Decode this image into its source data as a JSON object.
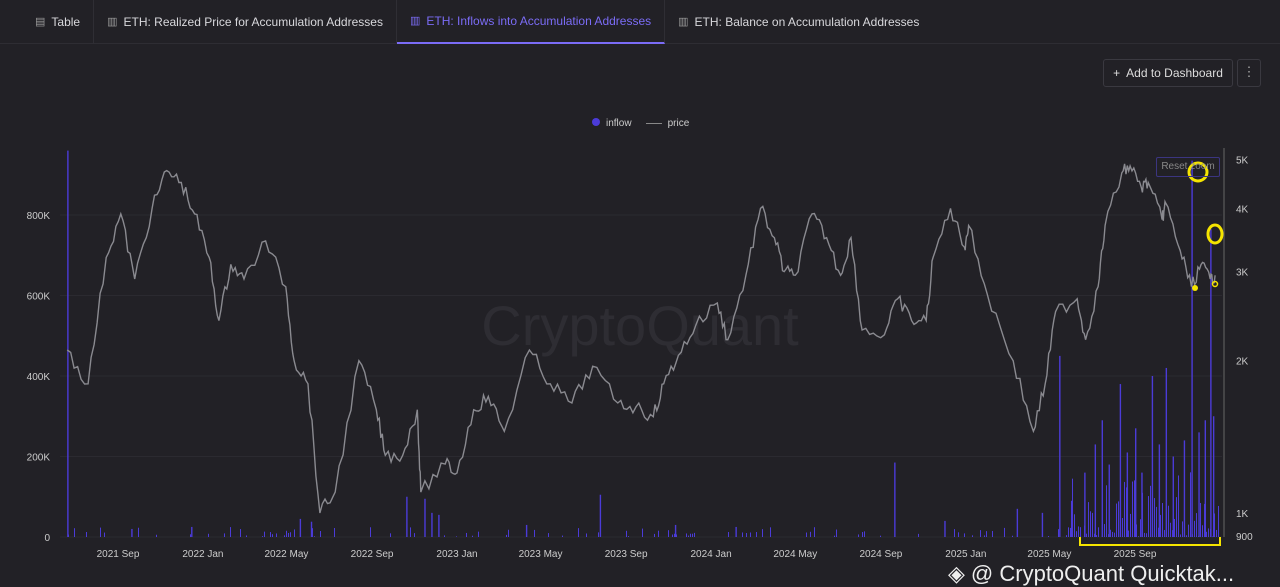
{
  "tabs": [
    {
      "label": "Table",
      "icon": "table-icon"
    },
    {
      "label": "ETH: Realized Price for Accumulation Addresses",
      "icon": "bar-chart-icon"
    },
    {
      "label": "ETH: Inflows into Accumulation Addresses",
      "icon": "bar-chart-icon",
      "active": true
    },
    {
      "label": "ETH: Balance on Accumulation Addresses",
      "icon": "bar-chart-icon"
    }
  ],
  "toolbar": {
    "add_label": "Add to Dashboard",
    "more": "⋮"
  },
  "reset_zoom": "Reset zoom",
  "watermark_center": "CryptoQuant",
  "watermark": "@ CryptoQuant Quicktak...",
  "colors": {
    "inflow": "#4b3bd8",
    "price": "#8a8a90",
    "highlight": "#f5e400",
    "accent": "#7b6cf6"
  },
  "chart_data": {
    "type": "bar+line",
    "legend": [
      {
        "name": "inflow"
      },
      {
        "name": "price"
      }
    ],
    "legend_position": "top-center",
    "x_ticks": [
      "2021 Sep",
      "2022 Jan",
      "2022 May",
      "2022 Sep",
      "2023 Jan",
      "2023 May",
      "2023 Sep",
      "2024 Jan",
      "2024 May",
      "2024 Sep",
      "2025 Jan",
      "2025 May",
      "2025 Sep"
    ],
    "x_tick_dates": [
      "2021-09-01",
      "2022-01-01",
      "2022-05-01",
      "2022-09-01",
      "2023-01-01",
      "2023-05-01",
      "2023-09-01",
      "2024-01-01",
      "2024-05-01",
      "2024-09-01",
      "2025-01-01",
      "2025-05-01",
      "2025-09-01"
    ],
    "left_axis": {
      "ticks": [
        "0",
        "200K",
        "400K",
        "600K",
        "800K"
      ],
      "values": [
        0,
        200000,
        400000,
        600000,
        800000
      ],
      "range": [
        0,
        960000
      ]
    },
    "right_axis": {
      "scale": "log",
      "ticks": [
        "900",
        "1K",
        "2K",
        "3K",
        "4K",
        "5K"
      ],
      "values": [
        900,
        1000,
        2000,
        3000,
        4000,
        5000
      ]
    },
    "price": [
      [
        "2021-06-20",
        2100
      ],
      [
        "2021-07-20",
        1800
      ],
      [
        "2021-08-15",
        3200
      ],
      [
        "2021-09-05",
        3900
      ],
      [
        "2021-09-25",
        2900
      ],
      [
        "2021-10-20",
        4000
      ],
      [
        "2021-11-10",
        4750
      ],
      [
        "2021-12-01",
        4500
      ],
      [
        "2021-12-20",
        3900
      ],
      [
        "2022-01-10",
        3200
      ],
      [
        "2022-01-24",
        2400
      ],
      [
        "2022-02-10",
        3100
      ],
      [
        "2022-03-01",
        2900
      ],
      [
        "2022-04-01",
        3450
      ],
      [
        "2022-04-30",
        2800
      ],
      [
        "2022-05-12",
        2000
      ],
      [
        "2022-06-01",
        1800
      ],
      [
        "2022-06-18",
        1000
      ],
      [
        "2022-07-10",
        1100
      ],
      [
        "2022-08-13",
        2000
      ],
      [
        "2022-09-07",
        1600
      ],
      [
        "2022-09-20",
        1300
      ],
      [
        "2022-10-15",
        1300
      ],
      [
        "2022-11-05",
        1600
      ],
      [
        "2022-11-10",
        1100
      ],
      [
        "2022-12-15",
        1250
      ],
      [
        "2023-01-01",
        1200
      ],
      [
        "2023-01-25",
        1600
      ],
      [
        "2023-02-15",
        1700
      ],
      [
        "2023-03-10",
        1450
      ],
      [
        "2023-04-15",
        2100
      ],
      [
        "2023-05-15",
        1800
      ],
      [
        "2023-06-15",
        1650
      ],
      [
        "2023-07-15",
        1950
      ],
      [
        "2023-08-20",
        1650
      ],
      [
        "2023-09-15",
        1620
      ],
      [
        "2023-10-10",
        1550
      ],
      [
        "2023-10-25",
        1800
      ],
      [
        "2023-11-15",
        2050
      ],
      [
        "2023-12-10",
        2350
      ],
      [
        "2024-01-10",
        2600
      ],
      [
        "2024-01-25",
        2200
      ],
      [
        "2024-02-20",
        2950
      ],
      [
        "2024-03-12",
        4000
      ],
      [
        "2024-04-01",
        3500
      ],
      [
        "2024-04-15",
        3000
      ],
      [
        "2024-05-01",
        2950
      ],
      [
        "2024-05-25",
        3900
      ],
      [
        "2024-06-15",
        3500
      ],
      [
        "2024-07-05",
        2950
      ],
      [
        "2024-07-20",
        3500
      ],
      [
        "2024-08-05",
        2300
      ],
      [
        "2024-09-06",
        2250
      ],
      [
        "2024-09-25",
        2650
      ],
      [
        "2024-10-15",
        2400
      ],
      [
        "2024-11-05",
        2400
      ],
      [
        "2024-11-15",
        3200
      ],
      [
        "2024-12-10",
        4000
      ],
      [
        "2024-12-30",
        3350
      ],
      [
        "2025-01-05",
        3700
      ],
      [
        "2025-02-01",
        2700
      ],
      [
        "2025-03-10",
        2000
      ],
      [
        "2025-04-08",
        1450
      ],
      [
        "2025-04-25",
        1800
      ],
      [
        "2025-05-10",
        2500
      ],
      [
        "2025-06-10",
        2650
      ],
      [
        "2025-06-22",
        2200
      ],
      [
        "2025-07-10",
        2800
      ],
      [
        "2025-07-20",
        3700
      ],
      [
        "2025-08-13",
        4700
      ],
      [
        "2025-08-25",
        4850
      ],
      [
        "2025-09-10",
        4400
      ],
      [
        "2025-09-20",
        4500
      ],
      [
        "2025-10-10",
        3800
      ],
      [
        "2025-10-15",
        4100
      ],
      [
        "2025-11-05",
        3300
      ],
      [
        "2025-11-21",
        2800
      ],
      [
        "2025-12-05",
        3100
      ],
      [
        "2025-12-18",
        2900
      ],
      [
        "2025-12-25",
        2950
      ]
    ],
    "inflow": [
      [
        "2021-06-20",
        960000
      ],
      [
        "2021-09-20",
        20000
      ],
      [
        "2021-12-15",
        25000
      ],
      [
        "2022-05-20",
        45000
      ],
      [
        "2022-06-05",
        38000
      ],
      [
        "2022-10-20",
        100000
      ],
      [
        "2022-11-15",
        95000
      ],
      [
        "2022-11-25",
        60000
      ],
      [
        "2022-12-05",
        55000
      ],
      [
        "2023-04-10",
        30000
      ],
      [
        "2023-07-25",
        105000
      ],
      [
        "2023-11-10",
        30000
      ],
      [
        "2024-02-05",
        25000
      ],
      [
        "2024-09-20",
        185000
      ],
      [
        "2024-12-01",
        40000
      ],
      [
        "2025-03-15",
        70000
      ],
      [
        "2025-04-20",
        60000
      ],
      [
        "2025-05-15",
        450000
      ],
      [
        "2025-06-01",
        90000
      ],
      [
        "2025-06-20",
        160000
      ],
      [
        "2025-07-05",
        230000
      ],
      [
        "2025-07-15",
        290000
      ],
      [
        "2025-07-25",
        180000
      ],
      [
        "2025-08-10",
        380000
      ],
      [
        "2025-08-20",
        210000
      ],
      [
        "2025-09-01",
        270000
      ],
      [
        "2025-09-10",
        160000
      ],
      [
        "2025-09-25",
        400000
      ],
      [
        "2025-10-05",
        230000
      ],
      [
        "2025-10-15",
        420000
      ],
      [
        "2025-10-25",
        200000
      ],
      [
        "2025-11-10",
        240000
      ],
      [
        "2025-11-21",
        935000
      ],
      [
        "2025-12-01",
        260000
      ],
      [
        "2025-12-10",
        290000
      ],
      [
        "2025-12-18",
        765000
      ],
      [
        "2025-12-22",
        300000
      ]
    ]
  }
}
